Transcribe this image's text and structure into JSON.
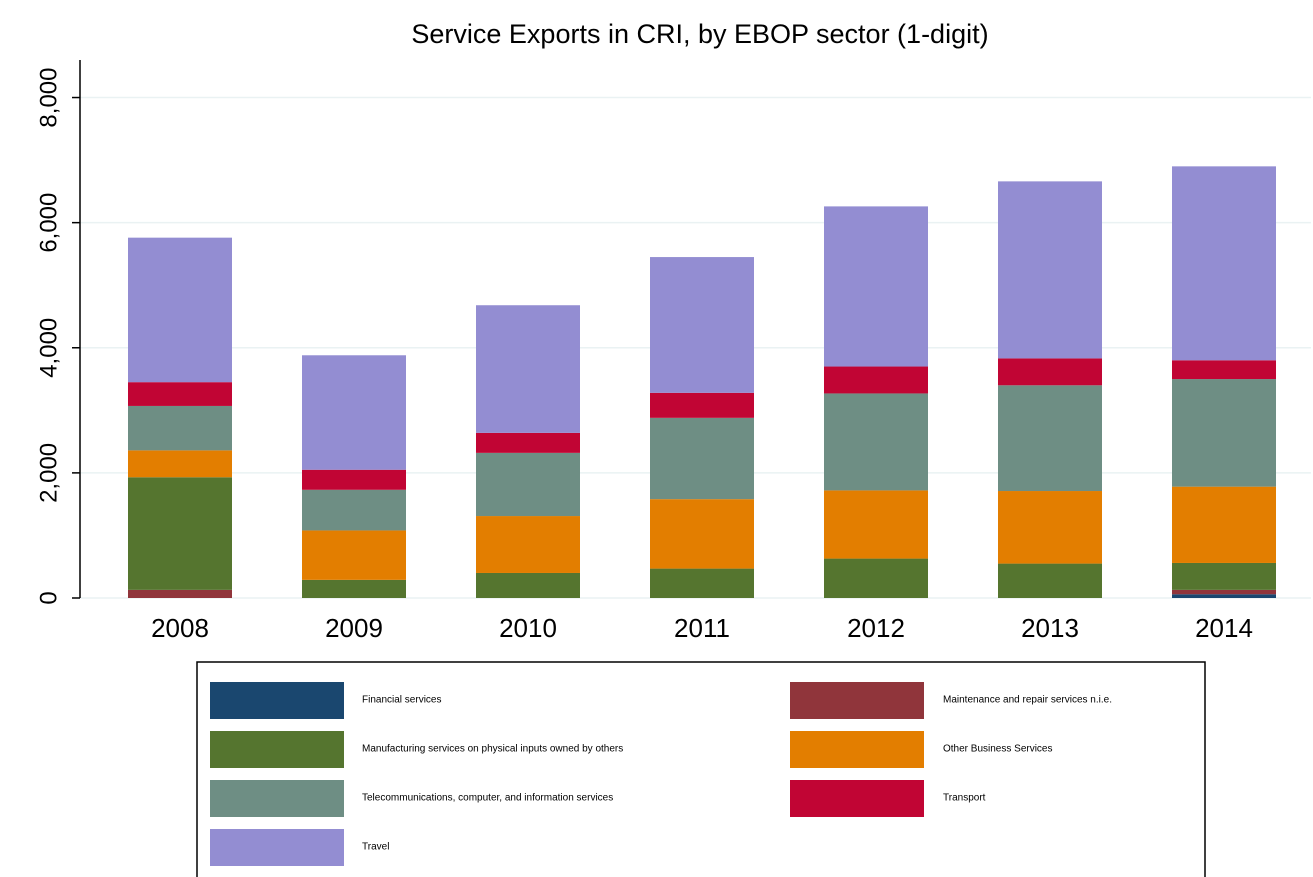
{
  "chart_data": {
    "type": "stacked_bar",
    "title": "Service Exports in CRI, by EBOP sector (1-digit)",
    "categories": [
      "2008",
      "2009",
      "2010",
      "2011",
      "2012",
      "2013",
      "2014"
    ],
    "series": [
      {
        "name": "Financial services",
        "color": "#1a476f",
        "values": [
          0,
          0,
          0,
          0,
          0,
          0,
          60
        ]
      },
      {
        "name": "Maintenance and repair services n.i.e.",
        "color": "#90353b",
        "values": [
          130,
          0,
          0,
          0,
          0,
          0,
          70
        ]
      },
      {
        "name": "Manufacturing services on physical inputs owned by others",
        "color": "#55752f",
        "values": [
          1800,
          290,
          400,
          470,
          630,
          550,
          430
        ]
      },
      {
        "name": "Other Business Services",
        "color": "#e37e00",
        "values": [
          430,
          790,
          910,
          1110,
          1090,
          1160,
          1220
        ]
      },
      {
        "name": "Telecommunications, computer, and information services",
        "color": "#6e8e84",
        "values": [
          710,
          650,
          1010,
          1300,
          1550,
          1690,
          1720
        ]
      },
      {
        "name": "Transport",
        "color": "#c10534",
        "values": [
          380,
          320,
          320,
          400,
          430,
          430,
          300
        ]
      },
      {
        "name": "Travel",
        "color": "#938dd2",
        "values": [
          2310,
          1830,
          2040,
          2170,
          2560,
          2830,
          3100
        ]
      }
    ],
    "ylim": [
      0,
      8600
    ],
    "yticks": [
      0,
      {
        "value": 2000,
        "label": "2,000"
      },
      {
        "value": 4000,
        "label": "4,000"
      },
      {
        "value": 6000,
        "label": "6,000"
      },
      {
        "value": 8000,
        "label": "8,000"
      }
    ],
    "grid": true
  }
}
